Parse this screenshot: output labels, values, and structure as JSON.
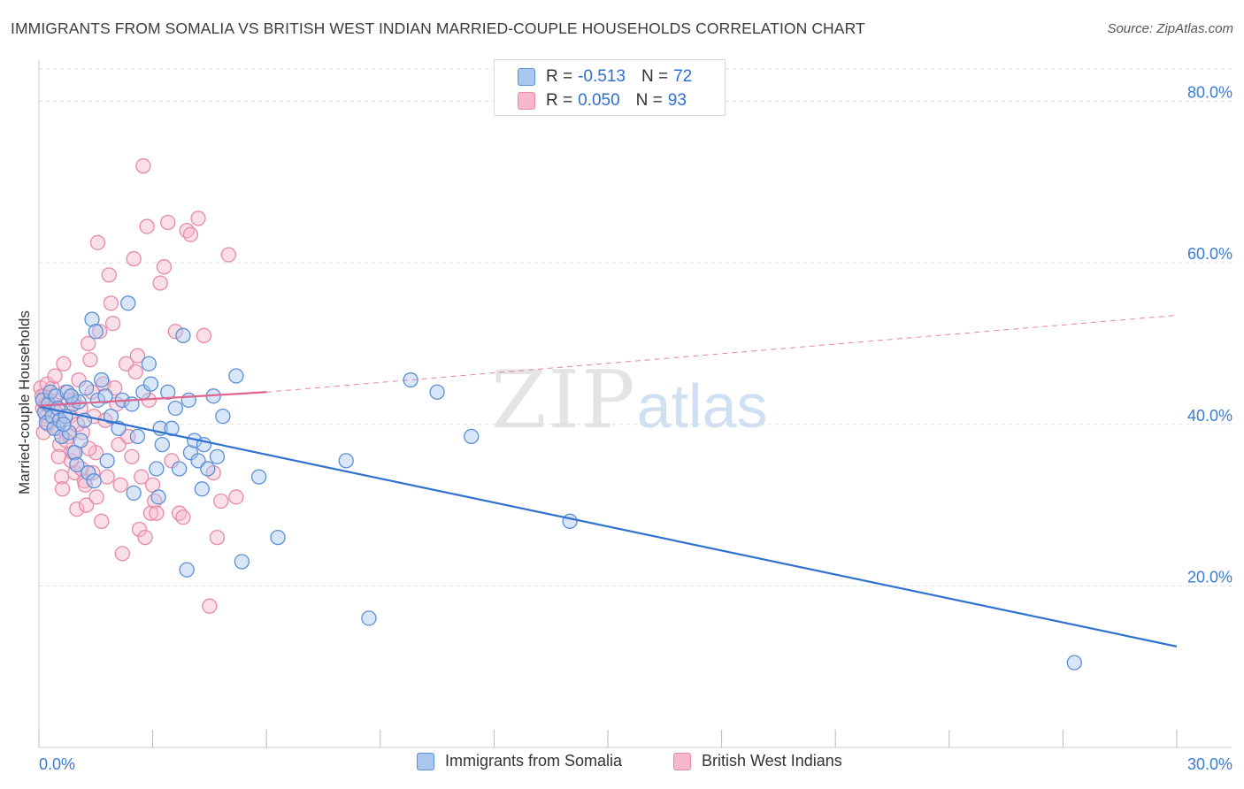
{
  "header": {
    "title": "IMMIGRANTS FROM SOMALIA VS BRITISH WEST INDIAN MARRIED-COUPLE HOUSEHOLDS CORRELATION CHART",
    "source": "Source: ZipAtlas.com"
  },
  "watermark": {
    "zip": "ZIP",
    "atlas": "atlas"
  },
  "legend": {
    "somalia": {
      "r_label": "R =",
      "r_value": "-0.513",
      "n_label": "N =",
      "n_value": "72"
    },
    "bwi": {
      "r_label": "R =",
      "r_value": "0.050",
      "n_label": "N =",
      "n_value": "93"
    },
    "bottom": {
      "somalia": "Immigrants from Somalia",
      "bwi": "British West Indians"
    }
  },
  "colors": {
    "somalia_fill": "#a9c8f0",
    "somalia_stroke": "#5b8fd6",
    "somalia_line": "#2f72d0",
    "bwi_fill": "#f7b8cc",
    "bwi_stroke": "#e68aa8",
    "bwi_line": "#e0648e",
    "grid": "#dddddd",
    "tick_text": "#3a7bd5"
  },
  "chart_data": {
    "type": "scatter",
    "title": "IMMIGRANTS FROM SOMALIA VS BRITISH WEST INDIAN MARRIED-COUPLE HOUSEHOLDS CORRELATION CHART",
    "xlabel": "",
    "ylabel": "Married-couple Households",
    "xlim": [
      0,
      30
    ],
    "ylim": [
      0,
      84
    ],
    "x_tick_labels": [
      "0.0%",
      "30.0%"
    ],
    "y_ticks": [
      20,
      40,
      60,
      80
    ],
    "y_tick_labels": [
      "20.0%",
      "40.0%",
      "60.0%",
      "80.0%"
    ],
    "grid": true,
    "legend_position": "top-center",
    "series": [
      {
        "name": "Immigrants from Somalia",
        "r": -0.513,
        "n": 72,
        "trend": {
          "x": [
            0,
            30
          ],
          "y": [
            42.2,
            12.5
          ],
          "style": "solid"
        },
        "points": [
          [
            0.1,
            43.0
          ],
          [
            0.15,
            41.5
          ],
          [
            0.2,
            40.2
          ],
          [
            0.25,
            42.5
          ],
          [
            0.3,
            44.0
          ],
          [
            0.35,
            41.0
          ],
          [
            0.4,
            39.5
          ],
          [
            0.45,
            43.5
          ],
          [
            0.5,
            42.0
          ],
          [
            0.55,
            40.5
          ],
          [
            0.6,
            38.5
          ],
          [
            0.7,
            41.0
          ],
          [
            0.75,
            44.0
          ],
          [
            0.8,
            39.0
          ],
          [
            0.9,
            42.5
          ],
          [
            0.95,
            36.5
          ],
          [
            1.0,
            35.0
          ],
          [
            1.05,
            42.8
          ],
          [
            1.1,
            38.0
          ],
          [
            1.2,
            40.5
          ],
          [
            1.25,
            44.5
          ],
          [
            1.3,
            34.0
          ],
          [
            1.4,
            53.0
          ],
          [
            1.5,
            51.5
          ],
          [
            1.55,
            43.0
          ],
          [
            1.65,
            45.5
          ],
          [
            1.75,
            43.5
          ],
          [
            1.8,
            35.5
          ],
          [
            1.9,
            41.0
          ],
          [
            2.1,
            39.5
          ],
          [
            2.2,
            43.0
          ],
          [
            2.35,
            55.0
          ],
          [
            2.45,
            42.5
          ],
          [
            2.6,
            38.5
          ],
          [
            2.75,
            44.0
          ],
          [
            2.9,
            47.5
          ],
          [
            2.95,
            45.0
          ],
          [
            3.1,
            34.5
          ],
          [
            3.2,
            39.5
          ],
          [
            3.25,
            37.5
          ],
          [
            3.4,
            44.0
          ],
          [
            3.5,
            39.5
          ],
          [
            3.6,
            42.0
          ],
          [
            3.7,
            34.5
          ],
          [
            3.8,
            51.0
          ],
          [
            3.9,
            22.0
          ],
          [
            3.95,
            43.0
          ],
          [
            4.0,
            36.5
          ],
          [
            4.1,
            38.0
          ],
          [
            4.2,
            35.5
          ],
          [
            4.3,
            32.0
          ],
          [
            4.35,
            37.5
          ],
          [
            4.45,
            34.5
          ],
          [
            4.6,
            43.5
          ],
          [
            4.7,
            36.0
          ],
          [
            4.85,
            41.0
          ],
          [
            5.2,
            46.0
          ],
          [
            5.35,
            23.0
          ],
          [
            5.8,
            33.5
          ],
          [
            6.3,
            26.0
          ],
          [
            8.1,
            35.5
          ],
          [
            8.7,
            16.0
          ],
          [
            9.8,
            45.5
          ],
          [
            10.5,
            44.0
          ],
          [
            11.4,
            38.5
          ],
          [
            14.0,
            28.0
          ],
          [
            27.3,
            10.5
          ],
          [
            3.15,
            31.0
          ],
          [
            2.5,
            31.5
          ],
          [
            1.45,
            33.0
          ],
          [
            0.65,
            40.0
          ],
          [
            0.85,
            43.5
          ]
        ]
      },
      {
        "name": "British West Indians",
        "r": 0.05,
        "n": 93,
        "trend": {
          "x": [
            0,
            6.0
          ],
          "y": [
            42.3,
            44.0
          ],
          "style": "solid"
        },
        "trend_extension": {
          "x": [
            6.0,
            30
          ],
          "y": [
            44.0,
            53.5
          ],
          "style": "dashed"
        },
        "points": [
          [
            0.05,
            44.5
          ],
          [
            0.1,
            42.0
          ],
          [
            0.15,
            43.5
          ],
          [
            0.2,
            41.0
          ],
          [
            0.25,
            40.0
          ],
          [
            0.3,
            43.0
          ],
          [
            0.35,
            44.5
          ],
          [
            0.4,
            42.5
          ],
          [
            0.45,
            41.5
          ],
          [
            0.5,
            39.5
          ],
          [
            0.55,
            37.5
          ],
          [
            0.6,
            33.5
          ],
          [
            0.65,
            47.5
          ],
          [
            0.7,
            44.0
          ],
          [
            0.75,
            43.0
          ],
          [
            0.8,
            38.5
          ],
          [
            0.85,
            35.5
          ],
          [
            0.9,
            36.5
          ],
          [
            0.95,
            34.0
          ],
          [
            1.0,
            29.5
          ],
          [
            1.05,
            45.5
          ],
          [
            1.1,
            42.0
          ],
          [
            1.15,
            39.0
          ],
          [
            1.2,
            33.0
          ],
          [
            1.25,
            30.0
          ],
          [
            1.3,
            50.0
          ],
          [
            1.35,
            48.0
          ],
          [
            1.4,
            44.0
          ],
          [
            1.45,
            41.0
          ],
          [
            1.5,
            36.5
          ],
          [
            1.55,
            62.5
          ],
          [
            1.6,
            51.5
          ],
          [
            1.65,
            28.0
          ],
          [
            1.7,
            45.0
          ],
          [
            1.75,
            40.5
          ],
          [
            1.8,
            33.5
          ],
          [
            1.85,
            58.5
          ],
          [
            1.9,
            55.0
          ],
          [
            1.95,
            52.5
          ],
          [
            2.0,
            44.5
          ],
          [
            2.05,
            42.5
          ],
          [
            2.1,
            37.5
          ],
          [
            2.15,
            32.5
          ],
          [
            2.2,
            24.0
          ],
          [
            2.3,
            47.5
          ],
          [
            2.35,
            38.5
          ],
          [
            2.45,
            36.0
          ],
          [
            2.5,
            60.5
          ],
          [
            2.55,
            46.5
          ],
          [
            2.6,
            48.5
          ],
          [
            2.65,
            27.0
          ],
          [
            2.7,
            33.5
          ],
          [
            2.75,
            72.0
          ],
          [
            2.8,
            26.0
          ],
          [
            2.85,
            64.5
          ],
          [
            2.9,
            43.0
          ],
          [
            2.95,
            29.0
          ],
          [
            3.0,
            32.5
          ],
          [
            3.05,
            30.5
          ],
          [
            3.1,
            29.0
          ],
          [
            3.2,
            57.5
          ],
          [
            3.3,
            59.5
          ],
          [
            3.4,
            65.0
          ],
          [
            3.5,
            35.5
          ],
          [
            3.6,
            51.5
          ],
          [
            3.7,
            29.0
          ],
          [
            3.8,
            28.5
          ],
          [
            3.9,
            64.0
          ],
          [
            4.0,
            63.5
          ],
          [
            4.2,
            65.5
          ],
          [
            4.35,
            51.0
          ],
          [
            4.5,
            17.5
          ],
          [
            4.6,
            34.0
          ],
          [
            4.7,
            26.0
          ],
          [
            4.8,
            30.5
          ],
          [
            5.0,
            61.0
          ],
          [
            5.2,
            31.0
          ],
          [
            0.12,
            39.0
          ],
          [
            0.22,
            45.0
          ],
          [
            0.42,
            46.0
          ],
          [
            0.52,
            36.0
          ],
          [
            0.62,
            32.0
          ],
          [
            0.72,
            38.0
          ],
          [
            0.82,
            41.0
          ],
          [
            0.92,
            43.0
          ],
          [
            1.02,
            40.0
          ],
          [
            1.12,
            34.5
          ],
          [
            1.22,
            32.5
          ],
          [
            1.32,
            37.0
          ],
          [
            1.42,
            34.0
          ],
          [
            1.52,
            31.0
          ],
          [
            0.08,
            43.5
          ],
          [
            0.18,
            42.5
          ]
        ]
      }
    ]
  }
}
